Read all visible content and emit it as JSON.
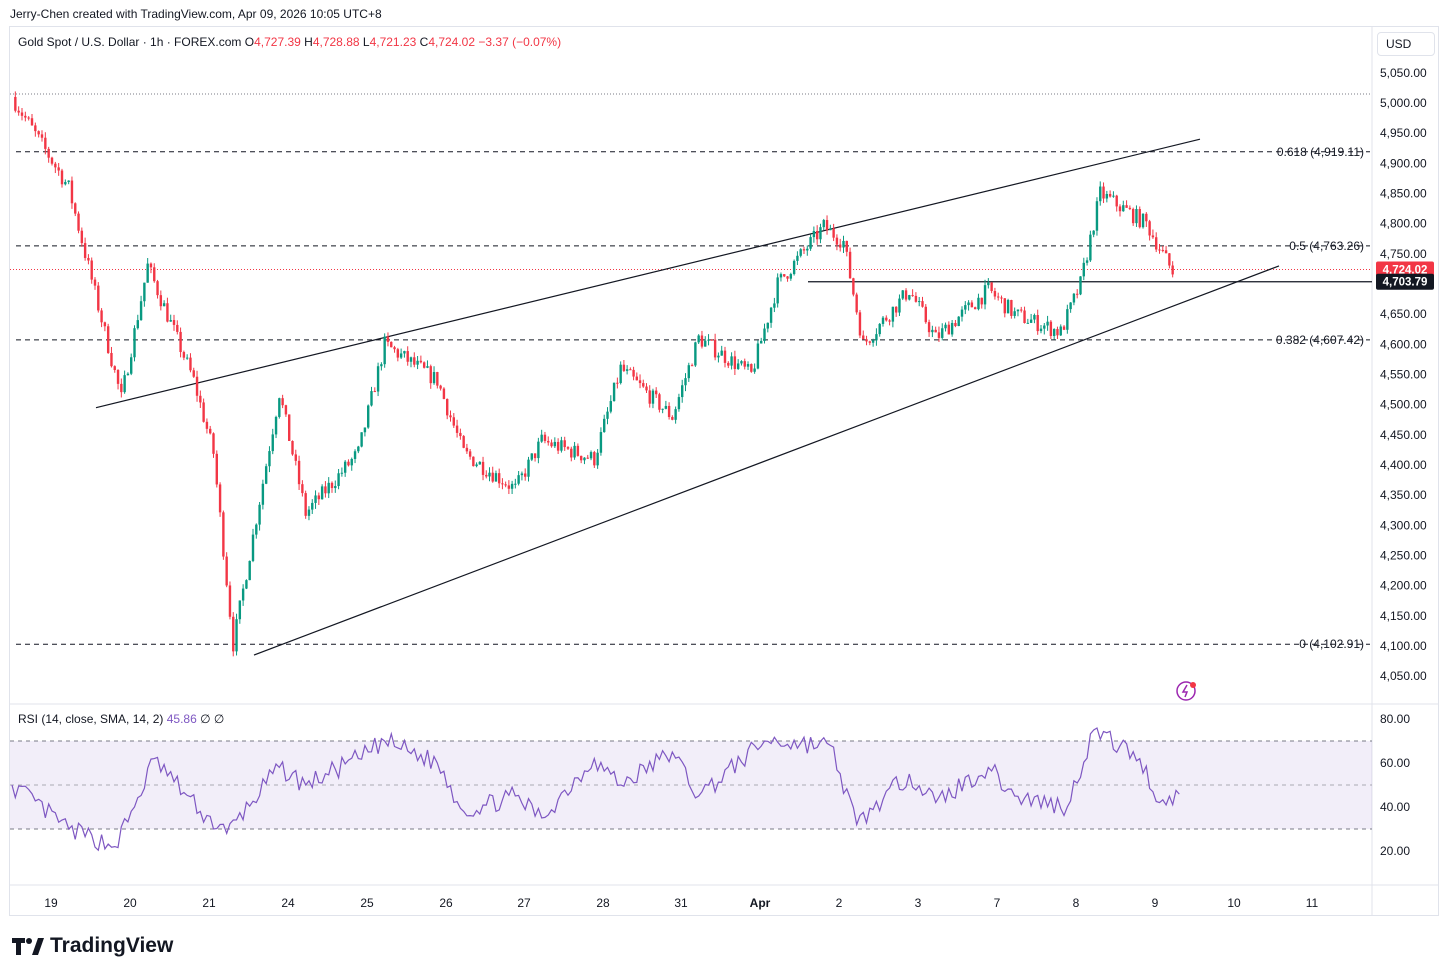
{
  "header": {
    "credit": "Jerry-Chen created with TradingView.com, Apr 09, 2026 10:05 UTC+8",
    "symbol": "Gold Spot / U.S. Dollar · 1h · FOREX.com",
    "open_label": "O",
    "open": "4,727.39",
    "high_label": "H",
    "high": "4,728.88",
    "low_label": "L",
    "low": "4,721.23",
    "close_label": "C",
    "close": "4,724.02",
    "change": "−3.37 (−0.07%)",
    "currency": "USD"
  },
  "rsi_legend": {
    "label": "RSI (14, close, SMA, 14, 2)",
    "value": "45.86",
    "extra": "∅ ∅"
  },
  "brand": "TradingView",
  "colors": {
    "up": "#089981",
    "down": "#f23645",
    "rsi_line": "#7e57c2",
    "rsi_band": "#7e57c2",
    "price_line": "#f23645"
  },
  "chart_data": [
    {
      "type": "candlestick",
      "title": "Gold Spot / U.S. Dollar · 1h · FOREX.com",
      "y_ticks": [
        "4,050.00",
        "4,100.00",
        "4,150.00",
        "4,200.00",
        "4,250.00",
        "4,300.00",
        "4,350.00",
        "4,400.00",
        "4,450.00",
        "4,500.00",
        "4,550.00",
        "4,600.00",
        "4,650.00",
        "4,700.00",
        "4,750.00",
        "4,800.00",
        "4,850.00",
        "4,900.00",
        "4,950.00",
        "5,000.00",
        "5,050.00"
      ],
      "ylim": [
        4030,
        5090
      ],
      "x_ticks": [
        "19",
        "20",
        "21",
        "24",
        "25",
        "26",
        "27",
        "28",
        "31",
        "Apr",
        "2",
        "3",
        "7",
        "8",
        "9",
        "10",
        "11"
      ],
      "key_points": [
        {
          "x": "19",
          "price": 5010
        },
        {
          "x": "19",
          "price": 4860
        },
        {
          "x": "20",
          "price": 4510
        },
        {
          "x": "20",
          "price": 4730
        },
        {
          "x": "21",
          "price": 4540
        },
        {
          "x": "21",
          "price": 4420
        },
        {
          "x": "21",
          "price": 4103
        },
        {
          "x": "24",
          "price": 4520
        },
        {
          "x": "24",
          "price": 4320
        },
        {
          "x": "25",
          "price": 4420
        },
        {
          "x": "25",
          "price": 4600
        },
        {
          "x": "26",
          "price": 4540
        },
        {
          "x": "26",
          "price": 4420
        },
        {
          "x": "27",
          "price": 4360
        },
        {
          "x": "27",
          "price": 4440
        },
        {
          "x": "28",
          "price": 4410
        },
        {
          "x": "28",
          "price": 4560
        },
        {
          "x": "31",
          "price": 4480
        },
        {
          "x": "31",
          "price": 4610
        },
        {
          "x": "Apr",
          "price": 4550
        },
        {
          "x": "Apr",
          "price": 4700
        },
        {
          "x": "2",
          "price": 4795
        },
        {
          "x": "2",
          "price": 4770
        },
        {
          "x": "2",
          "price": 4600
        },
        {
          "x": "3",
          "price": 4690
        },
        {
          "x": "3",
          "price": 4610
        },
        {
          "x": "7",
          "price": 4690
        },
        {
          "x": "7",
          "price": 4650
        },
        {
          "x": "8",
          "price": 4620
        },
        {
          "x": "8",
          "price": 4700
        },
        {
          "x": "8",
          "price": 4850
        },
        {
          "x": "9",
          "price": 4800
        },
        {
          "x": "9",
          "price": 4720
        }
      ],
      "fib_levels": [
        {
          "label": "0.618 (4,919.11)",
          "price": 4919.11
        },
        {
          "label": "0.5 (4,763.26)",
          "price": 4763.26
        },
        {
          "label": "0.382 (4,607.42)",
          "price": 4607.42
        },
        {
          "label": "0 (4,102.91)",
          "price": 4102.91
        }
      ],
      "top_dotted_level": 5015,
      "current_price": {
        "label": "4,724.02",
        "price": 4724.02
      },
      "support_level": {
        "label": "4,703.79",
        "price": 4703.79
      },
      "channel_lines": [
        {
          "from": {
            "x": "19",
            "price": 4495
          },
          "to": {
            "x": "9",
            "price": 4940
          }
        },
        {
          "from": {
            "x": "21",
            "price": 4085
          },
          "to": {
            "x": "10",
            "price": 4730
          }
        }
      ],
      "grid": false
    },
    {
      "type": "line",
      "title": "RSI (14, close, SMA, 14, 2)",
      "y_ticks": [
        "20.00",
        "40.00",
        "60.00",
        "80.00"
      ],
      "ylim": [
        10,
        85
      ],
      "band": [
        30,
        70
      ],
      "midline": 50,
      "last_value": 45.86,
      "key_points": [
        {
          "x": "19",
          "value": 50
        },
        {
          "x": "19",
          "value": 30
        },
        {
          "x": "20",
          "value": 22
        },
        {
          "x": "20",
          "value": 40
        },
        {
          "x": "20",
          "value": 62
        },
        {
          "x": "21",
          "value": 38
        },
        {
          "x": "21",
          "value": 28
        },
        {
          "x": "24",
          "value": 58
        },
        {
          "x": "24",
          "value": 50
        },
        {
          "x": "25",
          "value": 62
        },
        {
          "x": "25",
          "value": 70
        },
        {
          "x": "26",
          "value": 60
        },
        {
          "x": "26",
          "value": 38
        },
        {
          "x": "27",
          "value": 45
        },
        {
          "x": "27",
          "value": 35
        },
        {
          "x": "28",
          "value": 62
        },
        {
          "x": "28",
          "value": 50
        },
        {
          "x": "31",
          "value": 65
        },
        {
          "x": "31",
          "value": 45
        },
        {
          "x": "Apr",
          "value": 70
        },
        {
          "x": "2",
          "value": 68
        },
        {
          "x": "2",
          "value": 32
        },
        {
          "x": "3",
          "value": 55
        },
        {
          "x": "3",
          "value": 42
        },
        {
          "x": "7",
          "value": 58
        },
        {
          "x": "7",
          "value": 45
        },
        {
          "x": "8",
          "value": 40
        },
        {
          "x": "8",
          "value": 75
        },
        {
          "x": "9",
          "value": 62
        },
        {
          "x": "9",
          "value": 42
        },
        {
          "x": "9",
          "value": 45.86
        }
      ]
    }
  ]
}
